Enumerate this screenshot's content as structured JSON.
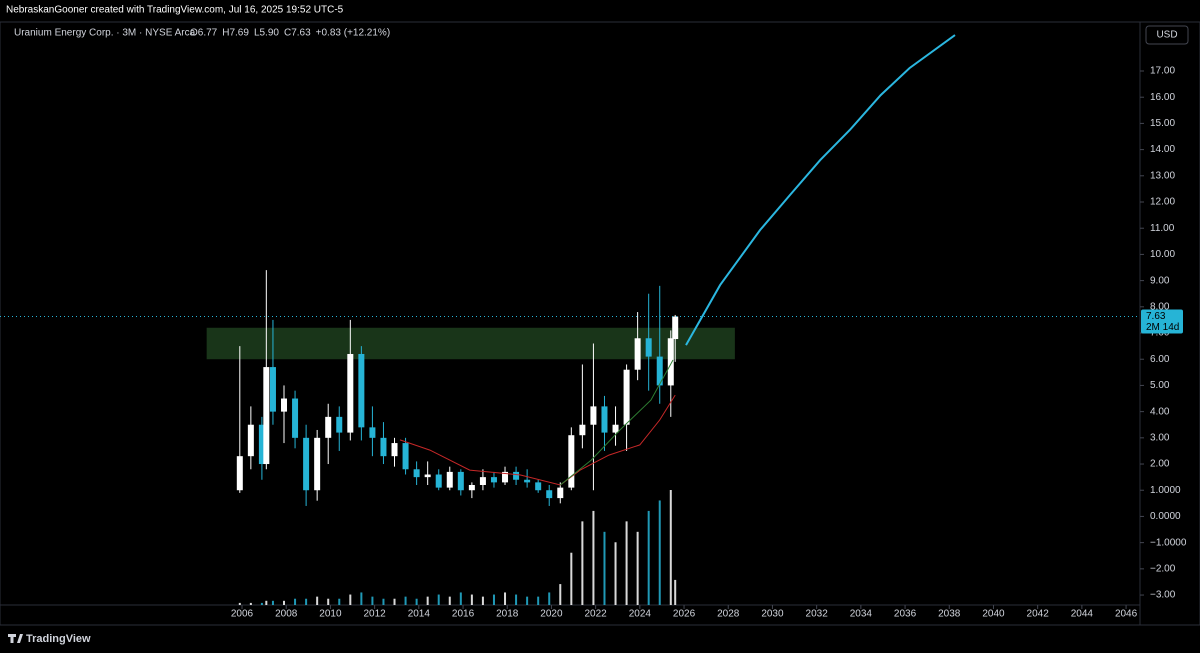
{
  "header": {
    "credit": "NebraskanGooner created with TradingView.com, Jul 16, 2025 19:52 UTC-5",
    "brand": "TradingView"
  },
  "chart_data": {
    "type": "candlestick",
    "title": "Uranium Energy Corp. · 3M · NYSE Arca",
    "ohlc_legend": [
      "O6.77",
      "H7.69",
      "L5.90",
      "C7.63",
      "+0.83 (+12.21%)"
    ],
    "currency": "USD",
    "x": [
      2005.9,
      2006.4,
      2006.9,
      2007.1,
      2007.4,
      2007.9,
      2008.4,
      2008.9,
      2009.4,
      2009.9,
      2010.4,
      2010.9,
      2011.4,
      2011.9,
      2012.4,
      2012.9,
      2013.4,
      2013.9,
      2014.4,
      2014.9,
      2015.4,
      2015.9,
      2016.4,
      2016.9,
      2017.4,
      2017.9,
      2018.4,
      2018.9,
      2019.4,
      2019.9,
      2020.4,
      2020.9,
      2021.4,
      2021.9,
      2022.4,
      2022.9,
      2023.4,
      2023.9,
      2024.4,
      2024.9,
      2025.4,
      2025.6
    ],
    "open": [
      1.0,
      2.3,
      3.5,
      2.0,
      5.7,
      4.0,
      4.5,
      3.0,
      1.0,
      3.0,
      3.8,
      3.2,
      6.2,
      3.4,
      3.0,
      2.3,
      2.8,
      1.8,
      1.5,
      1.6,
      1.1,
      1.7,
      1.0,
      1.2,
      1.5,
      1.3,
      1.7,
      1.4,
      1.3,
      1.0,
      0.7,
      1.1,
      3.1,
      3.5,
      4.2,
      3.2,
      3.5,
      5.6,
      6.8,
      6.1,
      5.0,
      6.77
    ],
    "high": [
      6.5,
      4.2,
      3.8,
      9.4,
      7.5,
      5.0,
      4.8,
      3.5,
      3.3,
      4.3,
      4.2,
      7.5,
      6.5,
      4.2,
      3.6,
      3.0,
      3.0,
      2.1,
      2.1,
      1.8,
      1.9,
      1.8,
      1.3,
      1.8,
      1.7,
      1.9,
      1.9,
      1.8,
      1.4,
      1.2,
      1.3,
      3.4,
      5.8,
      6.6,
      4.6,
      4.2,
      5.8,
      7.8,
      8.5,
      8.8,
      7.1,
      7.69
    ],
    "low": [
      0.9,
      1.8,
      1.4,
      1.8,
      3.5,
      2.8,
      2.6,
      0.4,
      0.6,
      2.0,
      2.5,
      2.9,
      2.9,
      2.3,
      2.0,
      1.9,
      1.6,
      1.2,
      1.2,
      1.0,
      1.0,
      0.8,
      0.7,
      1.0,
      1.1,
      1.2,
      1.2,
      1.1,
      0.9,
      0.4,
      0.5,
      1.0,
      2.6,
      1.0,
      2.5,
      2.7,
      2.5,
      5.2,
      4.8,
      4.3,
      3.8,
      5.9
    ],
    "close": [
      2.3,
      3.5,
      2.0,
      5.7,
      4.0,
      4.5,
      3.0,
      1.0,
      3.0,
      3.8,
      3.2,
      6.2,
      3.4,
      3.0,
      2.3,
      2.8,
      1.8,
      1.5,
      1.6,
      1.1,
      1.7,
      1.0,
      1.2,
      1.5,
      1.3,
      1.7,
      1.4,
      1.3,
      1.0,
      0.7,
      1.1,
      3.1,
      3.5,
      4.2,
      3.2,
      3.5,
      5.6,
      6.8,
      6.1,
      5.0,
      6.8,
      7.63
    ],
    "volume": [
      1,
      1,
      1,
      2,
      2,
      2,
      3,
      3,
      4,
      3,
      3,
      5,
      6,
      4,
      3,
      3,
      4,
      3,
      4,
      5,
      4,
      6,
      5,
      4,
      5,
      6,
      5,
      4,
      4,
      6,
      10,
      25,
      40,
      45,
      35,
      30,
      40,
      35,
      45,
      50,
      55,
      12
    ],
    "up_color": "#ffffff",
    "down_color": "#26b4d6",
    "lines": [
      {
        "color": "#c62828",
        "x": [
          2013.15,
          2014.5,
          2016.3,
          2018.6,
          2020.4,
          2021.3,
          2022.6,
          2024.0,
          2024.9,
          2025.6
        ],
        "values": [
          2.92,
          2.53,
          1.77,
          1.58,
          1.2,
          1.77,
          2.34,
          2.73,
          3.68,
          4.63
        ]
      },
      {
        "color": "#2e7d32",
        "x": [
          2020.4,
          2021.8,
          2023.1,
          2024.5,
          2025.5
        ],
        "values": [
          1.2,
          2.15,
          3.3,
          4.44,
          5.97
        ]
      },
      {
        "color": "#2bb7e0",
        "x": [
          2026.09,
          2027.63,
          2029.44,
          2030.8,
          2032.16,
          2033.5,
          2034.9,
          2036.2,
          2038.26
        ],
        "values": [
          6.54,
          8.83,
          10.93,
          12.27,
          13.6,
          14.75,
          16.08,
          17.11,
          18.37
        ]
      }
    ],
    "zone": {
      "color": "#1c3b1c",
      "x": [
        2004.4,
        2028.3
      ],
      "y": [
        6.0,
        7.2
      ]
    },
    "last_price": {
      "value": 7.63,
      "countdown": "2M 14d"
    },
    "xlim": [
      1995.05,
      2046.63
    ],
    "ylim": [
      -3.38,
      18.87
    ],
    "xticks": [
      2006,
      2008,
      2010,
      2012,
      2014,
      2016,
      2018,
      2020,
      2022,
      2024,
      2026,
      2028,
      2030,
      2032,
      2034,
      2036,
      2038,
      2040,
      2042,
      2044,
      2046
    ],
    "yticks": [
      {
        "value": 17,
        "label": "17.00"
      },
      {
        "value": 16,
        "label": "16.00"
      },
      {
        "value": 15,
        "label": "15.00"
      },
      {
        "value": 14,
        "label": "14.00"
      },
      {
        "value": 13,
        "label": "13.00"
      },
      {
        "value": 12,
        "label": "12.00"
      },
      {
        "value": 11,
        "label": "11.00"
      },
      {
        "value": 10,
        "label": "10.00"
      },
      {
        "value": 9,
        "label": "9.00"
      },
      {
        "value": 8,
        "label": "8.00"
      },
      {
        "value": 7,
        "label": "7.00"
      },
      {
        "value": 6,
        "label": "6.00"
      },
      {
        "value": 5,
        "label": "5.00"
      },
      {
        "value": 4,
        "label": "4.00"
      },
      {
        "value": 3,
        "label": "3.00"
      },
      {
        "value": 2,
        "label": "2.00"
      },
      {
        "value": 1,
        "label": "1.0000"
      },
      {
        "value": 0,
        "label": "0.0000"
      },
      {
        "value": -1,
        "label": "−1.0000"
      },
      {
        "value": -2,
        "label": "−2.00"
      },
      {
        "value": -3,
        "label": "−3.00"
      }
    ]
  }
}
